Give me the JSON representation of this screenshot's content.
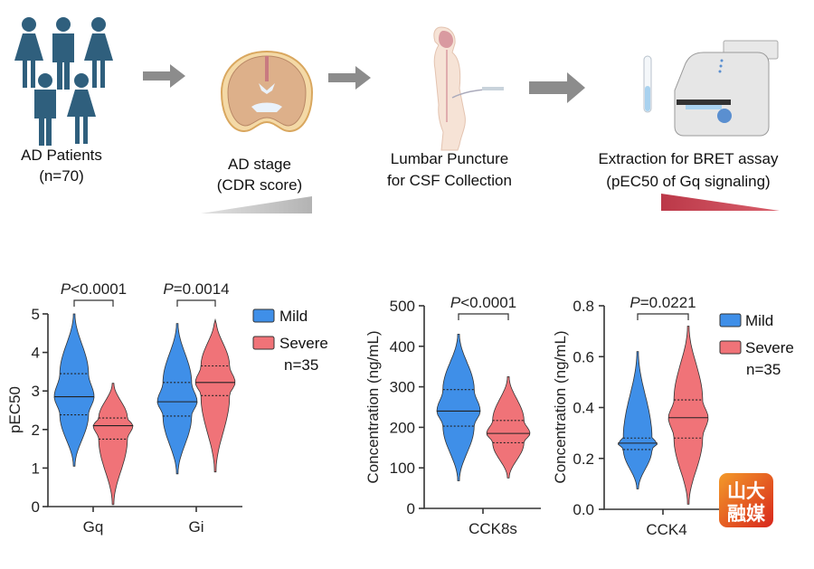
{
  "workflow": {
    "steps": [
      {
        "line1": "AD Patients",
        "line2": "(n=70)",
        "icon": "people-icon"
      },
      {
        "line1": "AD stage",
        "line2": "(CDR score)",
        "icon": "brain-icon"
      },
      {
        "line1": "Lumbar Puncture",
        "line2": "for CSF Collection",
        "icon": "body-puncture-icon"
      },
      {
        "line1": "Extraction for BRET assay",
        "line2": "(pEC50 of Gq signaling)",
        "icon": "plate-reader-icon"
      }
    ],
    "colors": {
      "people": "#2f5f7d",
      "arrow": "#8c8c8c",
      "cdr_gradient": "#b9b9b9",
      "pec50_gradient": "#c0404f"
    }
  },
  "colors": {
    "mild": "#3f8fe8",
    "severe": "#f07378"
  },
  "legend": {
    "mild": "Mild",
    "severe": "Severe",
    "n": "n=35"
  },
  "watermark": {
    "line1": "山大",
    "line2": "融媒"
  },
  "chart_data": [
    {
      "type": "violin",
      "ylabel": "pEC50",
      "ylim": [
        0,
        5
      ],
      "yticks": [
        "0",
        "1",
        "2",
        "3",
        "4",
        "5"
      ],
      "categories": [
        "Gq",
        "Gi"
      ],
      "p_values": [
        {
          "italic": "P",
          "rest": "<0.0001"
        },
        {
          "italic": "P",
          "rest": "=0.0014"
        }
      ],
      "series": [
        {
          "name": "Mild",
          "stats": [
            {
              "min": 1.05,
              "q1": 2.38,
              "median": 2.85,
              "q3": 3.45,
              "max": 5.0
            },
            {
              "min": 0.85,
              "q1": 2.35,
              "median": 2.72,
              "q3": 3.22,
              "max": 4.75
            }
          ]
        },
        {
          "name": "Severe",
          "stats": [
            {
              "min": 0.05,
              "q1": 1.75,
              "median": 2.1,
              "q3": 2.3,
              "max": 3.2
            },
            {
              "min": 0.9,
              "q1": 2.88,
              "median": 3.22,
              "q3": 3.65,
              "max": 4.85
            }
          ]
        }
      ]
    },
    {
      "type": "violin",
      "ylabel": "Concentration (ng/mL)",
      "ylim": [
        0,
        500
      ],
      "yticks": [
        "0",
        "100",
        "200",
        "300",
        "400",
        "500"
      ],
      "categories": [
        "CCK8s"
      ],
      "p_values": [
        {
          "italic": "P",
          "rest": "<0.0001"
        }
      ],
      "series": [
        {
          "name": "Mild",
          "stats": [
            {
              "min": 68,
              "q1": 203,
              "median": 240,
              "q3": 293,
              "max": 430
            }
          ]
        },
        {
          "name": "Severe",
          "stats": [
            {
              "min": 75,
              "q1": 162,
              "median": 185,
              "q3": 217,
              "max": 325
            }
          ]
        }
      ]
    },
    {
      "type": "violin",
      "ylabel": "Concentration (ng/mL)",
      "ylim": [
        0,
        0.8
      ],
      "yticks": [
        "0.0",
        "0.2",
        "0.4",
        "0.6",
        "0.8"
      ],
      "categories": [
        "CCK4"
      ],
      "p_values": [
        {
          "italic": "P",
          "rest": "=0.0221"
        }
      ],
      "series": [
        {
          "name": "Mild",
          "stats": [
            {
              "min": 0.08,
              "q1": 0.235,
              "median": 0.26,
              "q3": 0.28,
              "max": 0.62
            }
          ]
        },
        {
          "name": "Severe",
          "stats": [
            {
              "min": 0.02,
              "q1": 0.28,
              "median": 0.36,
              "q3": 0.43,
              "max": 0.72
            }
          ]
        }
      ]
    }
  ]
}
